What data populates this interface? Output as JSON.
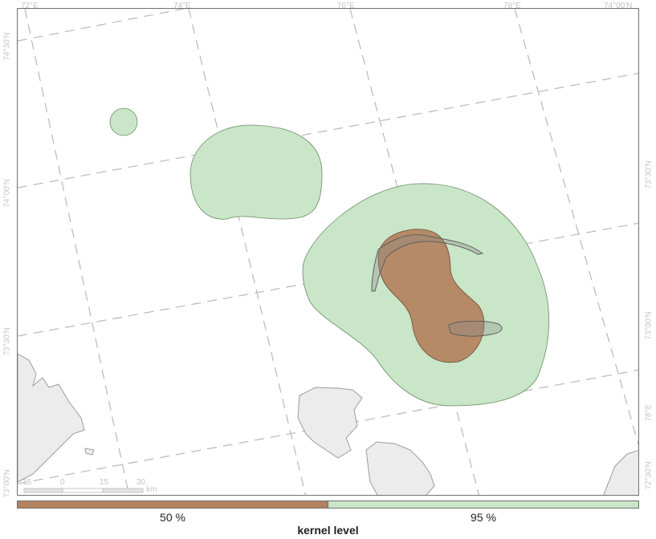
{
  "colors": {
    "kernel_50": "#b4825e",
    "kernel_95": "#c9e6c8",
    "land": "#ececec",
    "grid": "#b8b8b8",
    "frame": "#707070"
  },
  "map": {
    "top_ticks": [
      "72°E",
      "74°E",
      "76°E",
      "78°E",
      "74°00'N"
    ],
    "left_ticks": [
      "74°30'N",
      "74°00'N",
      "73°30'N",
      "73°00'N"
    ],
    "right_ticks": [
      "73°30'N",
      "73°00'N",
      "78°E",
      "72°30'N"
    ],
    "scale": {
      "labels": [
        "15",
        "0",
        "15",
        "30"
      ],
      "unit": "km"
    }
  },
  "legend": {
    "title": "kernel level",
    "items": [
      {
        "label": "50 %",
        "color": "#b4825e"
      },
      {
        "label": "95 %",
        "color": "#c9e6c8"
      }
    ]
  }
}
